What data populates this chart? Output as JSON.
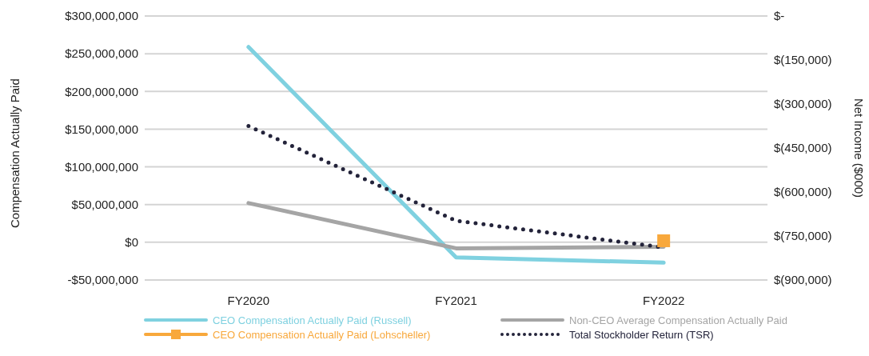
{
  "chart_data": {
    "type": "line",
    "categories": [
      "FY2020",
      "FY2021",
      "FY2022"
    ],
    "ylabel": "Compensation Actually Paid",
    "y2label": "Net Income ($000)",
    "ylim": [
      -50000000,
      300000000
    ],
    "yticks": [
      {
        "value": -50000000,
        "label": "-$50,000,000"
      },
      {
        "value": 0,
        "label": "$0"
      },
      {
        "value": 50000000,
        "label": "$50,000,000"
      },
      {
        "value": 100000000,
        "label": "$100,000,000"
      },
      {
        "value": 150000000,
        "label": "$150,000,000"
      },
      {
        "value": 200000000,
        "label": "$200,000,000"
      },
      {
        "value": 250000000,
        "label": "$250,000,000"
      },
      {
        "value": 300000000,
        "label": "$300,000,000"
      }
    ],
    "y2lim": [
      -900000,
      0
    ],
    "y2ticks": [
      {
        "value": -900000,
        "label": "$(900,000)"
      },
      {
        "value": -750000,
        "label": "$(750,000)"
      },
      {
        "value": -600000,
        "label": "$(600,000)"
      },
      {
        "value": -450000,
        "label": "$(450,000)"
      },
      {
        "value": -300000,
        "label": "$(300,000)"
      },
      {
        "value": -150000,
        "label": "$(150,000)"
      },
      {
        "value": 0,
        "label": "$-"
      }
    ],
    "grid": "y",
    "legend": "bottom",
    "series": [
      {
        "name": "CEO Compensation Actually Paid (Russell)",
        "color": "#7fd1e0",
        "line_style": "solid",
        "values": [
          259000000,
          -20000000,
          -27000000
        ]
      },
      {
        "name": "Non-CEO Average Compensation Actually Paid",
        "color": "#a5a5a5",
        "line_style": "solid",
        "values": [
          52000000,
          -8000000,
          -6000000
        ]
      },
      {
        "name": "CEO Compensation Actually Paid (Lohscheller)",
        "color": "#f8a83c",
        "line_style": "solid",
        "marker": "square",
        "values": [
          null,
          null,
          2000000
        ]
      },
      {
        "name": "Total Stockholder Return (TSR)",
        "color": "#23233a",
        "line_style": "dotted",
        "axis": "y2",
        "values": [
          -375000,
          -698000,
          -789000
        ]
      }
    ]
  }
}
